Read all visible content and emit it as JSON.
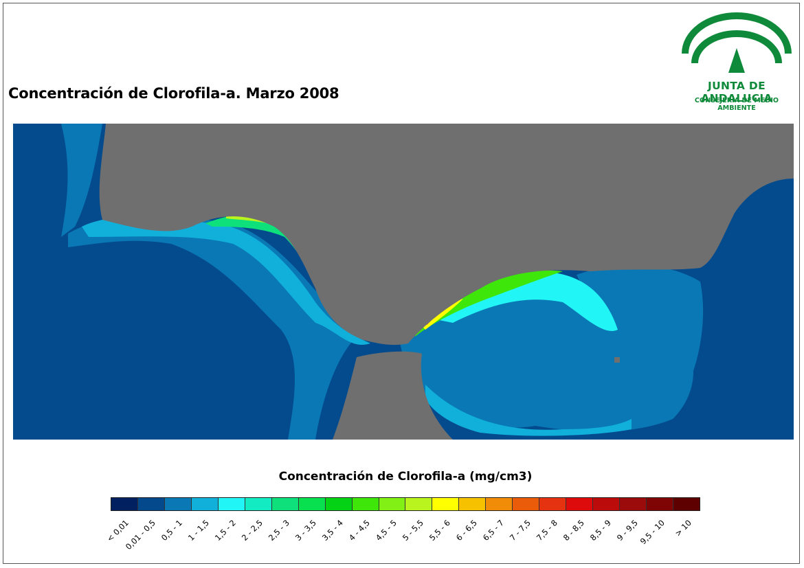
{
  "header": {
    "title": "Concentración de Clorofila-a. Marzo 2008"
  },
  "logo": {
    "name": "JUNTA DE ANDALUCIA",
    "subtitle": "CONSEJERÍA DE MEDIO AMBIENTE",
    "color": "#0f8a3a"
  },
  "map": {
    "land_color": "#6f6f6f",
    "deep_sea_color": "#044b8e"
  },
  "legend": {
    "title": "Concentración de Clorofila-a (mg/cm3)",
    "classes": [
      {
        "label": "< 0,01",
        "color": "#002060"
      },
      {
        "label": "0,01 - 0,5",
        "color": "#05498d"
      },
      {
        "label": "0,5 - 1",
        "color": "#0a78b4"
      },
      {
        "label": "1 - 1,5",
        "color": "#10b0da"
      },
      {
        "label": "1,5 - 2",
        "color": "#22f5f5"
      },
      {
        "label": "2 - 2,5",
        "color": "#13ecc2"
      },
      {
        "label": "2,5 - 3",
        "color": "#0ee07c"
      },
      {
        "label": "3 - 3,5",
        "color": "#09e050"
      },
      {
        "label": "3,5 - 4",
        "color": "#04d315"
      },
      {
        "label": "4 - 4,5",
        "color": "#3fe60a"
      },
      {
        "label": "4,5 - 5",
        "color": "#82f014"
      },
      {
        "label": "5 - 5,5",
        "color": "#baf41e"
      },
      {
        "label": "5,5 - 6",
        "color": "#ffff00"
      },
      {
        "label": "6 - 6,5",
        "color": "#f6c200"
      },
      {
        "label": "6,5 - 7",
        "color": "#f08c08"
      },
      {
        "label": "7 - 7,5",
        "color": "#ea5c0a"
      },
      {
        "label": "7,5 - 8",
        "color": "#e53312"
      },
      {
        "label": "8 - 8,5",
        "color": "#dd0b0b"
      },
      {
        "label": "8,5 - 9",
        "color": "#bc0b0b"
      },
      {
        "label": "9 - 9,5",
        "color": "#9c0b0b"
      },
      {
        "label": "9,5 - 10",
        "color": "#7f0505"
      },
      {
        "label": "> 10",
        "color": "#5e0000"
      }
    ]
  }
}
